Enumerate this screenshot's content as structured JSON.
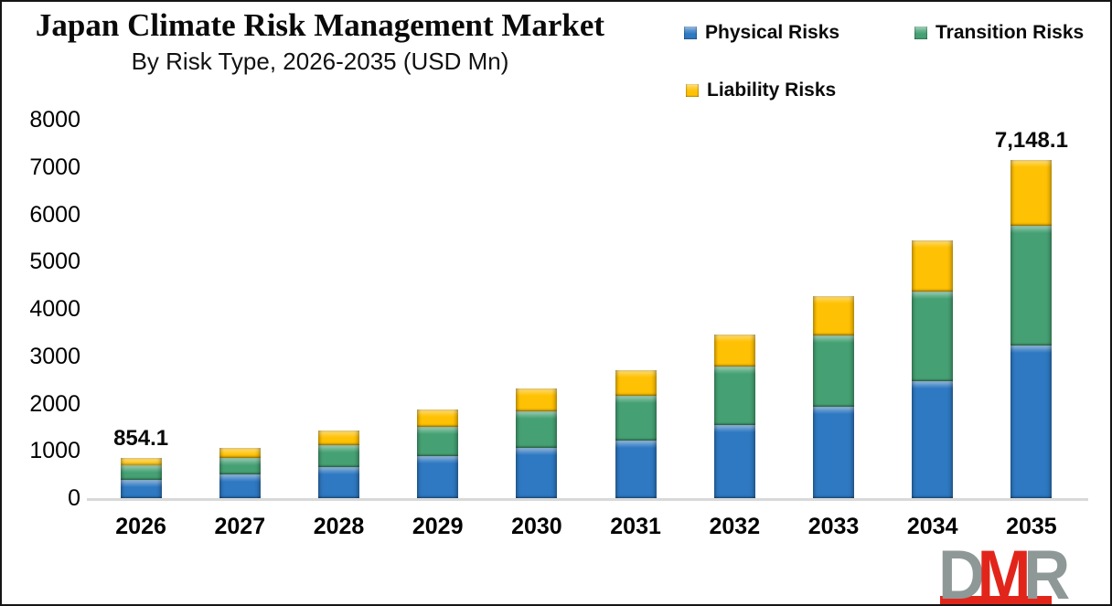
{
  "page": {
    "title": "Japan Climate Risk Management Market",
    "subtitle": "By Risk Type, 2026-2035 (USD Mn)"
  },
  "logo": {
    "letters": [
      "D",
      "M",
      "R"
    ],
    "gray": "#8E9897",
    "red": "#E2251B"
  },
  "colors": {
    "axis_line": "#D9D9D9",
    "text": "#000000",
    "background": "#FFFFFF"
  },
  "chart_data": {
    "type": "bar",
    "stacked": true,
    "title": "Japan Climate Risk Management Market",
    "subtitle": "By Risk Type, 2026-2035 (USD Mn)",
    "unit": "USD Mn",
    "categories": [
      "2026",
      "2027",
      "2028",
      "2029",
      "2030",
      "2031",
      "2032",
      "2033",
      "2034",
      "2035"
    ],
    "series": [
      {
        "name": "Physical Risks",
        "color": "#2E79C2",
        "values": [
          385,
          500,
          660,
          880,
          1065,
          1225,
          1550,
          1930,
          2480,
          3220
        ]
      },
      {
        "name": "Transition Risks",
        "color": "#45A173",
        "values": [
          305,
          350,
          465,
          630,
          775,
          935,
          1230,
          1500,
          1880,
          2530
        ]
      },
      {
        "name": "Liability Risks",
        "color": "#FFC103",
        "values": [
          164.1,
          215,
          305,
          360,
          480,
          540,
          670,
          850,
          1080,
          1398.1
        ]
      }
    ],
    "totals": [
      854.1,
      1065,
      1430,
      1870,
      2320,
      2700,
      3450,
      4280,
      5440,
      7148.1
    ],
    "annotations": [
      {
        "category": "2026",
        "text": "854.1"
      },
      {
        "category": "2035",
        "text": "7,148.1"
      }
    ],
    "yticks": [
      0,
      1000,
      2000,
      3000,
      4000,
      5000,
      6000,
      7000,
      8000
    ],
    "ylim": [
      0,
      8000
    ],
    "xlabel": "",
    "ylabel": "",
    "grid": false,
    "legend_position": "top-right"
  }
}
